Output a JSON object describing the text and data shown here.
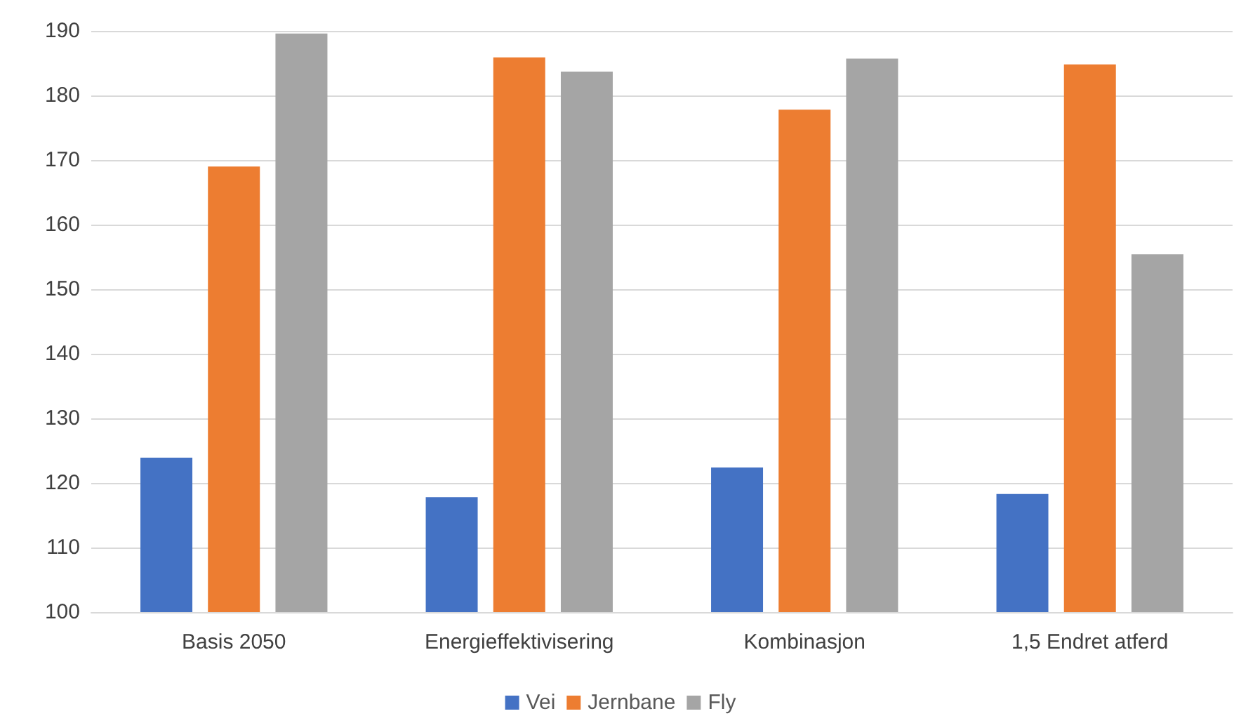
{
  "chart_data": {
    "type": "bar",
    "categories": [
      "Basis 2050",
      "Energieffektivisering",
      "Kombinasjon",
      "1,5 Endret atferd"
    ],
    "series": [
      {
        "name": "Vei",
        "color": "#4472c4",
        "values": [
          123.9,
          117.8,
          122.4,
          118.3
        ]
      },
      {
        "name": "Jernbane",
        "color": "#ed7d31",
        "values": [
          169,
          185.9,
          177.8,
          184.8
        ]
      },
      {
        "name": "Fly",
        "color": "#a5a5a5",
        "values": [
          189.6,
          183.7,
          185.7,
          155.4
        ]
      }
    ],
    "ylim": [
      100,
      190
    ],
    "yticks": [
      100,
      110,
      120,
      130,
      140,
      150,
      160,
      170,
      180,
      190
    ],
    "grid": "y",
    "legend": "bottom"
  }
}
